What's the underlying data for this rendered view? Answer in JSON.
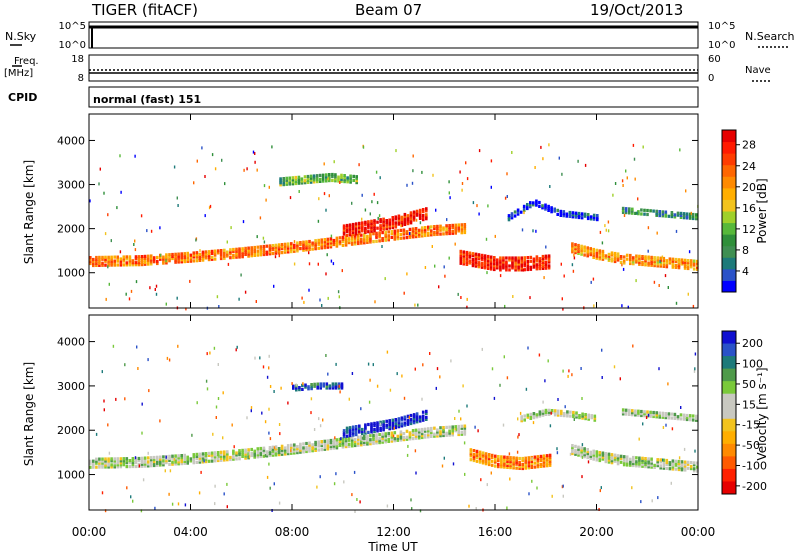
{
  "header": {
    "station": "TIGER (fitACF)",
    "beam": "Beam 07",
    "date": "19/Oct/2013"
  },
  "strips": {
    "nsky_label": "N.Sky",
    "nsky_ticks": [
      "10^5",
      "10^0"
    ],
    "nsearch_label": "N.Search",
    "nsearch_ticks": [
      "10^5",
      "10^0"
    ],
    "freq_label_1": "Freq.",
    "freq_label_2": "[MHz]",
    "freq_ticks": [
      "18",
      "8"
    ],
    "nave_label": "Nave",
    "nave_ticks": [
      "60",
      "0"
    ],
    "cpid_label": "CPID",
    "cpid_value": "normal (fast) 151"
  },
  "chart_data": [
    {
      "type": "heatmap",
      "name": "power",
      "ylabel": "Slant Range [km]",
      "yticks": [
        1000,
        2000,
        3000,
        4000
      ],
      "ylim": [
        200,
        4600
      ],
      "xlim": [
        0,
        24
      ],
      "colorbar": {
        "label": "Power [dB]",
        "ticks": [
          "4",
          "8",
          "12",
          "16",
          "20",
          "24",
          "28"
        ],
        "colors": [
          "#0000ff",
          "#2a52c8",
          "#1d7a7a",
          "#3f8f52",
          "#2f8f3a",
          "#57b83a",
          "#9fd02a",
          "#f2c31e",
          "#ffae00",
          "#ff8a00",
          "#ff6600",
          "#ff3c00",
          "#ff1a00",
          "#e60000"
        ]
      },
      "bands": [
        {
          "t": [
            0,
            2,
            4,
            6,
            8,
            10,
            12,
            13.5,
            14.8
          ],
          "r": [
            1300,
            1320,
            1400,
            1500,
            1620,
            1760,
            1900,
            2000,
            2050
          ],
          "w": 200,
          "level": 0.72
        },
        {
          "t": [
            10,
            11,
            12,
            13.3
          ],
          "r": [
            2000,
            2100,
            2200,
            2400
          ],
          "w": 260,
          "level": 0.92
        },
        {
          "t": [
            14.6,
            16,
            17,
            18.2
          ],
          "r": [
            1400,
            1250,
            1250,
            1300
          ],
          "w": 300,
          "level": 0.88
        },
        {
          "t": [
            19,
            20,
            21,
            22,
            23,
            24
          ],
          "r": [
            1600,
            1450,
            1350,
            1300,
            1250,
            1200
          ],
          "w": 180,
          "level": 0.66
        },
        {
          "t": [
            7.5,
            8.5,
            9.5,
            10.5
          ],
          "r": [
            3100,
            3150,
            3200,
            3150
          ],
          "w": 140,
          "level": 0.35
        },
        {
          "t": [
            16.5,
            17.5,
            18.5,
            20
          ],
          "r": [
            2300,
            2650,
            2400,
            2300
          ],
          "w": 120,
          "level": 0.08
        },
        {
          "t": [
            21,
            22,
            23,
            24
          ],
          "r": [
            2450,
            2400,
            2350,
            2300
          ],
          "w": 90,
          "level": 0.25
        }
      ]
    },
    {
      "type": "heatmap",
      "name": "velocity",
      "ylabel": "Slant Range [km]",
      "xlabel": "Time UT",
      "yticks": [
        1000,
        2000,
        3000,
        4000
      ],
      "ylim": [
        200,
        4600
      ],
      "xlim": [
        0,
        24
      ],
      "xticks": [
        "00:00",
        "04:00",
        "08:00",
        "12:00",
        "16:00",
        "20:00",
        "00:00"
      ],
      "colorbar": {
        "label": "Velocity [m s⁻¹]",
        "ticks": [
          "200",
          "100",
          "50",
          "15",
          "-15",
          "-50",
          "-100",
          "-200"
        ],
        "colors": [
          "#1010d0",
          "#2a52c8",
          "#1d7a7a",
          "#4f9a4a",
          "#7ac93a",
          "#c8c8c0",
          "#c8c8c0",
          "#f2c31e",
          "#ffae00",
          "#ff8a00",
          "#ff5a00",
          "#ff2000",
          "#e60000"
        ]
      },
      "bands": [
        {
          "t": [
            0,
            2,
            4,
            6,
            8,
            10,
            12,
            13.5,
            14.8
          ],
          "r": [
            1300,
            1320,
            1400,
            1500,
            1620,
            1760,
            1900,
            2000,
            2050
          ],
          "w": 200,
          "level": 0.42
        },
        {
          "t": [
            10,
            11,
            12,
            13.3
          ],
          "r": [
            2000,
            2100,
            2200,
            2400
          ],
          "w": 220,
          "level": 0.05
        },
        {
          "t": [
            15,
            16,
            17,
            18.2
          ],
          "r": [
            1500,
            1350,
            1300,
            1380
          ],
          "w": 260,
          "level": 0.72
        },
        {
          "t": [
            19,
            20,
            21,
            22,
            23,
            24
          ],
          "r": [
            1600,
            1450,
            1350,
            1300,
            1250,
            1200
          ],
          "w": 180,
          "level": 0.42
        },
        {
          "t": [
            8,
            9,
            10
          ],
          "r": [
            3000,
            3050,
            3050
          ],
          "w": 120,
          "level": 0.1
        },
        {
          "t": [
            17,
            18,
            19,
            20
          ],
          "r": [
            2300,
            2450,
            2400,
            2300
          ],
          "w": 100,
          "level": 0.42
        },
        {
          "t": [
            21,
            22,
            23,
            24
          ],
          "r": [
            2450,
            2400,
            2350,
            2300
          ],
          "w": 90,
          "level": 0.42
        }
      ]
    }
  ]
}
